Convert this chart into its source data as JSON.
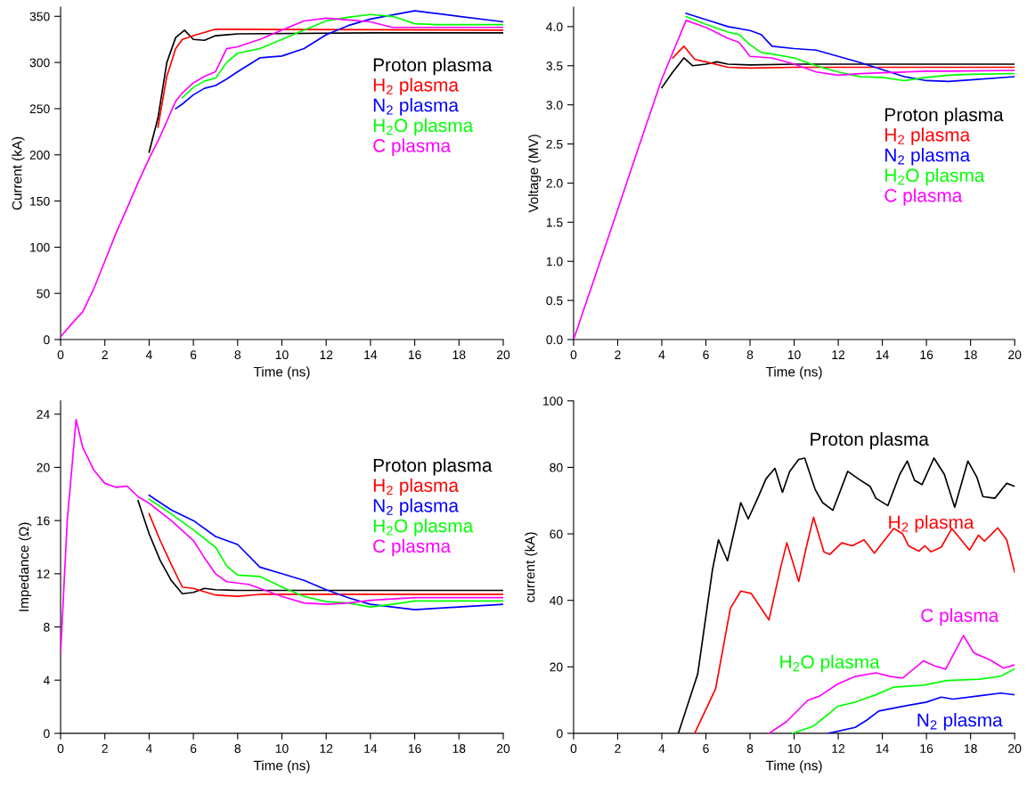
{
  "chart_data": [
    {
      "type": "line",
      "xlabel": "Time (ns)",
      "ylabel": "Current (kA)",
      "xlim": [
        0,
        20
      ],
      "ylim": [
        0,
        360
      ],
      "xticks": [
        0,
        2,
        4,
        6,
        8,
        10,
        12,
        14,
        16,
        18,
        20
      ],
      "yticks": [
        0,
        50,
        100,
        150,
        200,
        250,
        300,
        350
      ],
      "legend": "right",
      "grid": false,
      "series": [
        {
          "name": "Proton plasma",
          "color": "#000000",
          "x": [
            4,
            4.4,
            4.8,
            5.2,
            5.6,
            6,
            6.5,
            7,
            8,
            14,
            20
          ],
          "values": [
            203,
            240,
            300,
            327,
            335,
            325,
            324,
            329,
            331,
            332,
            332
          ]
        },
        {
          "name": "H$_{2}$ plasma",
          "color": "#ff0000",
          "x": [
            4.4,
            4.8,
            5.2,
            5.5,
            6,
            7,
            20
          ],
          "values": [
            230,
            285,
            315,
            325,
            329,
            336,
            335
          ]
        },
        {
          "name": "N$_{2}$ plasma",
          "color": "#0000ff",
          "x": [
            5.2,
            5.5,
            6,
            6.5,
            7,
            7.5,
            8,
            9,
            10,
            11,
            12,
            13,
            14,
            16,
            18,
            20
          ],
          "values": [
            250,
            255,
            265,
            272,
            275,
            282,
            290,
            305,
            307,
            315,
            330,
            340,
            347,
            356,
            350,
            344
          ]
        },
        {
          "name": "H$_{2}$O plasma",
          "color": "#00ff00",
          "x": [
            5.5,
            6,
            6.5,
            7,
            7.5,
            8,
            9,
            10,
            11,
            12,
            13,
            14,
            15,
            16,
            17,
            18,
            20
          ],
          "values": [
            262,
            273,
            280,
            283,
            300,
            310,
            315,
            325,
            335,
            345,
            349,
            352,
            350,
            342,
            341,
            341,
            341
          ]
        },
        {
          "name": "C plasma",
          "color": "#ff00ff",
          "x": [
            0,
            0.5,
            1,
            1.5,
            2,
            2.5,
            3,
            3.5,
            4,
            4.5,
            5.2,
            5.5,
            6,
            6.5,
            7,
            7.5,
            8,
            9,
            10,
            11,
            12,
            13,
            14,
            15,
            16,
            17,
            20
          ],
          "values": [
            3,
            17,
            30,
            55,
            85,
            115,
            142,
            170,
            196,
            220,
            258,
            267,
            278,
            285,
            290,
            315,
            317,
            325,
            335,
            345,
            348,
            346,
            344,
            338,
            338,
            338,
            338
          ]
        }
      ]
    },
    {
      "type": "line",
      "xlabel": "Time (ns)",
      "ylabel": "Voltage (MV)",
      "xlim": [
        0,
        20
      ],
      "ylim": [
        0,
        4.25
      ],
      "xticks": [
        0,
        2,
        4,
        6,
        8,
        10,
        12,
        14,
        16,
        18,
        20
      ],
      "yticks": [
        {
          "value": 0,
          "label": "0.0"
        },
        0.5,
        {
          "value": 1,
          "label": "1.0"
        },
        1.5,
        {
          "value": 2,
          "label": "2.0"
        },
        2.5,
        {
          "value": 3,
          "label": "3.0"
        },
        3.5,
        {
          "value": 4,
          "label": "4.0"
        }
      ],
      "legend": "right",
      "grid": false,
      "series": [
        {
          "name": "Proton plasma",
          "color": "#000000",
          "x": [
            4,
            4.5,
            5,
            5.4,
            6,
            6.5,
            7,
            8,
            10,
            20
          ],
          "values": [
            3.22,
            3.42,
            3.6,
            3.5,
            3.52,
            3.55,
            3.52,
            3.51,
            3.52,
            3.52
          ]
        },
        {
          "name": "H$_{2}$ plasma",
          "color": "#ff0000",
          "x": [
            4.5,
            5,
            5.5,
            6,
            7,
            8,
            10,
            20
          ],
          "values": [
            3.6,
            3.75,
            3.58,
            3.55,
            3.48,
            3.47,
            3.48,
            3.48
          ]
        },
        {
          "name": "N$_{2}$ plasma",
          "color": "#0000ff",
          "x": [
            5.1,
            6,
            7,
            8,
            8.5,
            9,
            10,
            11,
            12,
            13,
            15,
            16,
            17,
            18,
            20
          ],
          "values": [
            4.17,
            4.09,
            4.0,
            3.95,
            3.9,
            3.75,
            3.72,
            3.7,
            3.62,
            3.54,
            3.36,
            3.31,
            3.3,
            3.32,
            3.36
          ]
        },
        {
          "name": "H$_{2}$O plasma",
          "color": "#00ff00",
          "x": [
            5.1,
            6,
            7,
            7.5,
            8,
            8.5,
            9,
            10,
            11,
            12,
            13,
            14,
            15,
            16,
            17,
            18,
            20
          ],
          "values": [
            4.13,
            4.03,
            3.93,
            3.9,
            3.77,
            3.67,
            3.65,
            3.6,
            3.5,
            3.42,
            3.36,
            3.35,
            3.31,
            3.35,
            3.38,
            3.39,
            3.4
          ]
        },
        {
          "name": "C plasma",
          "color": "#ff00ff",
          "x": [
            0,
            1,
            2,
            3,
            4,
            5.1,
            6,
            7,
            7.5,
            8,
            9,
            10,
            11,
            12,
            13,
            14,
            15,
            16,
            17,
            20
          ],
          "values": [
            0,
            0.83,
            1.66,
            2.5,
            3.33,
            4.08,
            3.99,
            3.85,
            3.8,
            3.62,
            3.6,
            3.52,
            3.42,
            3.38,
            3.4,
            3.41,
            3.42,
            3.43,
            3.43,
            3.44
          ]
        }
      ]
    },
    {
      "type": "line",
      "xlabel": "Time (ns)",
      "ylabel": "Impedance (Ω)",
      "xlim": [
        0,
        20
      ],
      "ylim": [
        0,
        25
      ],
      "xticks": [
        0,
        2,
        4,
        6,
        8,
        10,
        12,
        14,
        16,
        18,
        20
      ],
      "yticks": [
        0,
        4,
        8,
        12,
        16,
        20,
        24
      ],
      "legend": "right",
      "grid": false,
      "series": [
        {
          "name": "Proton plasma",
          "color": "#000000",
          "x": [
            3.5,
            4,
            4.5,
            5,
            5.5,
            6,
            6.5,
            7,
            8,
            20
          ],
          "values": [
            17.5,
            15,
            13,
            11.5,
            10.5,
            10.6,
            10.9,
            10.8,
            10.75,
            10.75
          ]
        },
        {
          "name": "H$_{2}$ plasma",
          "color": "#ff0000",
          "x": [
            4,
            4.5,
            5,
            5.5,
            6,
            7,
            8,
            9,
            20
          ],
          "values": [
            16.5,
            14.5,
            12.7,
            11.0,
            10.9,
            10.4,
            10.3,
            10.45,
            10.45
          ]
        },
        {
          "name": "N$_{2}$ plasma",
          "color": "#0000ff",
          "x": [
            4,
            5,
            6,
            7,
            8,
            9,
            10,
            11,
            12,
            13,
            14,
            15,
            16,
            18,
            20
          ],
          "values": [
            17.9,
            16.8,
            16,
            14.8,
            14.2,
            12.5,
            12,
            11.5,
            10.8,
            10.2,
            9.7,
            9.5,
            9.3,
            9.5,
            9.7
          ]
        },
        {
          "name": "H$_{2}$O plasma",
          "color": "#00ff00",
          "x": [
            4,
            5,
            6,
            7,
            7.5,
            8,
            9,
            10,
            11,
            12,
            13,
            14,
            15,
            16,
            20
          ],
          "values": [
            17.6,
            16.5,
            15.3,
            14,
            12.6,
            11.9,
            11.8,
            11,
            10.3,
            9.9,
            9.8,
            9.5,
            9.7,
            9.95,
            9.95
          ]
        },
        {
          "name": "C plasma",
          "color": "#ff00ff",
          "x": [
            0,
            0.3,
            0.7,
            1,
            1.5,
            2,
            2.5,
            3,
            3.5,
            4,
            5,
            6,
            6.5,
            7,
            7.5,
            8.5,
            10,
            11,
            12,
            13,
            14,
            15,
            16,
            20
          ],
          "values": [
            6,
            16,
            23.6,
            21.5,
            19.8,
            18.8,
            18.5,
            18.6,
            17.8,
            17.3,
            16,
            14.5,
            13.2,
            12,
            11.4,
            11.2,
            10.3,
            9.8,
            9.7,
            9.8,
            10.0,
            10.1,
            10.2,
            10.2
          ]
        }
      ]
    },
    {
      "type": "line",
      "xlabel": "Time (ns)",
      "ylabel": "current (kA)",
      "xlim": [
        0,
        20
      ],
      "ylim": [
        0,
        100
      ],
      "xticks": [
        0,
        2,
        4,
        6,
        8,
        10,
        12,
        14,
        16,
        18,
        20
      ],
      "yticks": [
        0,
        20,
        40,
        60,
        80,
        100
      ],
      "grid": false,
      "series": [
        {
          "name": "Proton plasma",
          "color": "#000000",
          "x": [
            4.75,
            5.63,
            6.3,
            6.57,
            6.98,
            7.58,
            7.92,
            8.32,
            8.73,
            9.13,
            9.47,
            9.8,
            10.21,
            10.48,
            10.95,
            11.29,
            11.76,
            12.43,
            12.9,
            13.44,
            13.71,
            14.25,
            14.79,
            15.13,
            15.46,
            15.8,
            16.34,
            16.81,
            17.28,
            17.88,
            18.29,
            18.56,
            19.1,
            19.64,
            20
          ],
          "values": [
            0,
            17.9,
            49.3,
            58.2,
            51.9,
            69.4,
            64.5,
            70.3,
            76.6,
            79.7,
            72.5,
            78.8,
            82.4,
            82.8,
            73.4,
            69.4,
            67.1,
            78.8,
            76.6,
            74.3,
            70.7,
            68.5,
            77.9,
            81.9,
            76.1,
            74.8,
            82.8,
            77.9,
            68.0,
            81.9,
            77.0,
            71.2,
            70.7,
            75.2,
            74.3
          ]
        },
        {
          "name": "H$_{2}$ plasma",
          "color": "#ff0000",
          "x": [
            5.49,
            6.44,
            7.11,
            7.58,
            8.05,
            8.86,
            9.4,
            9.67,
            10.21,
            10.54,
            10.88,
            11.35,
            11.62,
            12.16,
            12.63,
            13.17,
            13.64,
            14.11,
            14.52,
            14.92,
            15.19,
            15.66,
            15.93,
            16.2,
            16.67,
            17.15,
            17.95,
            18.36,
            18.63,
            18.83,
            19.23,
            19.64,
            20
          ],
          "values": [
            0,
            13.4,
            37.6,
            42.8,
            42.1,
            34.1,
            50.2,
            57.3,
            45.7,
            55.6,
            65.0,
            54.6,
            53.8,
            57.3,
            56.4,
            58.2,
            54.2,
            58.2,
            61.6,
            60.0,
            56.4,
            54.8,
            56.4,
            54.6,
            56.0,
            61.6,
            55.1,
            59.6,
            57.8,
            59.1,
            61.8,
            58.2,
            48.4
          ]
        },
        {
          "name": "N$_{2}$ plasma",
          "color": "#0000ff",
          "x": [
            11.56,
            12.77,
            13.3,
            13.84,
            14.92,
            16.0,
            16.67,
            17.21,
            18.29,
            19.37,
            20
          ],
          "values": [
            0,
            1.8,
            4.0,
            6.7,
            8.1,
            9.4,
            10.9,
            10.3,
            11.2,
            12.1,
            11.6
          ]
        },
        {
          "name": "H$_{2}$O plasma",
          "color": "#00ff00",
          "x": [
            9.94,
            10.88,
            11.56,
            11.96,
            12.77,
            13.71,
            14.52,
            15.86,
            16.94,
            18.42,
            19.37,
            20
          ],
          "values": [
            0,
            2.2,
            5.8,
            8.1,
            9.4,
            11.6,
            13.9,
            14.5,
            15.9,
            16.3,
            17.2,
            19.4
          ]
        },
        {
          "name": "C plasma",
          "color": "#ff00ff",
          "x": [
            8.86,
            9.67,
            10.61,
            11.15,
            11.96,
            12.77,
            13.71,
            14.38,
            14.92,
            15.86,
            16.4,
            16.87,
            17.68,
            18.15,
            18.9,
            19.5,
            20
          ],
          "values": [
            0,
            3.6,
            9.9,
            11.2,
            14.8,
            17.1,
            18.2,
            17.1,
            16.6,
            21.8,
            20.2,
            19.3,
            29.4,
            24.2,
            22.0,
            19.6,
            20.6
          ]
        }
      ]
    }
  ]
}
